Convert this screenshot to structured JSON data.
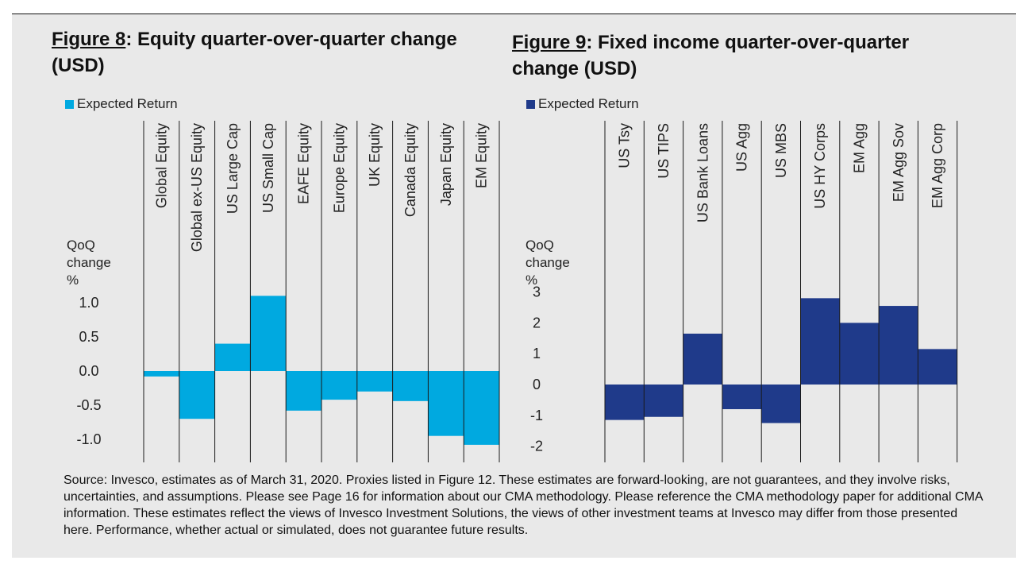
{
  "chart_data": [
    {
      "type": "bar",
      "figure_label": "Figure 8",
      "title": ": Equity quarter-over-quarter change (USD)",
      "legend": "Expected Return",
      "ylabel": [
        "QoQ",
        "change",
        "%"
      ],
      "color": "#00a9e0",
      "categories": [
        "Global Equity",
        "Global ex-US Equity",
        "US Large Cap",
        "US Small Cap",
        "EAFE Equity",
        "Europe Equity",
        "UK Equity",
        "Canada Equity",
        "Japan Equity",
        "EM Equity"
      ],
      "values": [
        -0.08,
        -0.7,
        0.4,
        1.1,
        -0.58,
        -0.42,
        -0.3,
        -0.44,
        -0.95,
        -1.08
      ],
      "yticks": [
        1.0,
        0.5,
        0.0,
        -0.5,
        -1.0
      ],
      "ytick_labels": [
        "1.0",
        "0.5",
        "0.0",
        "-0.5",
        "-1.0"
      ],
      "ylim": [
        -1.3,
        1.3
      ]
    },
    {
      "type": "bar",
      "figure_label": "Figure 9",
      "title": ": Fixed income quarter-over-quarter change (USD)",
      "legend": "Expected Return",
      "ylabel": [
        "QoQ",
        "change",
        "%"
      ],
      "color": "#1f3a8a",
      "categories": [
        "US Tsy",
        "US TIPS",
        "US Bank Loans",
        "US Agg",
        "US MBS",
        "US HY Corps",
        "EM Agg",
        "EM Agg Sov",
        "EM Agg Corp"
      ],
      "values": [
        -1.15,
        -1.05,
        1.65,
        -0.8,
        -1.25,
        2.8,
        2.0,
        2.55,
        1.15
      ],
      "yticks": [
        3,
        2,
        1,
        0,
        -1,
        -2
      ],
      "ytick_labels": [
        "3",
        "2",
        "1",
        "0",
        "-1",
        "-2"
      ],
      "ylim": [
        -2.5,
        3.5
      ]
    }
  ],
  "source_note": "Source: Invesco, estimates as of March 31, 2020. Proxies listed in Figure 12. These estimates are forward-looking, are not  guarantees, and they involve risks, uncertainties, and assumptions. Please see Page 16 for information about our CMA  methodology. Please reference the CMA methodology paper for additional CMA information. These estimates reflect the  views of Invesco Investment Solutions, the views of other investment teams at Invesco may differ from those presented  here. Performance, whether actual or simulated, does not guarantee future results."
}
